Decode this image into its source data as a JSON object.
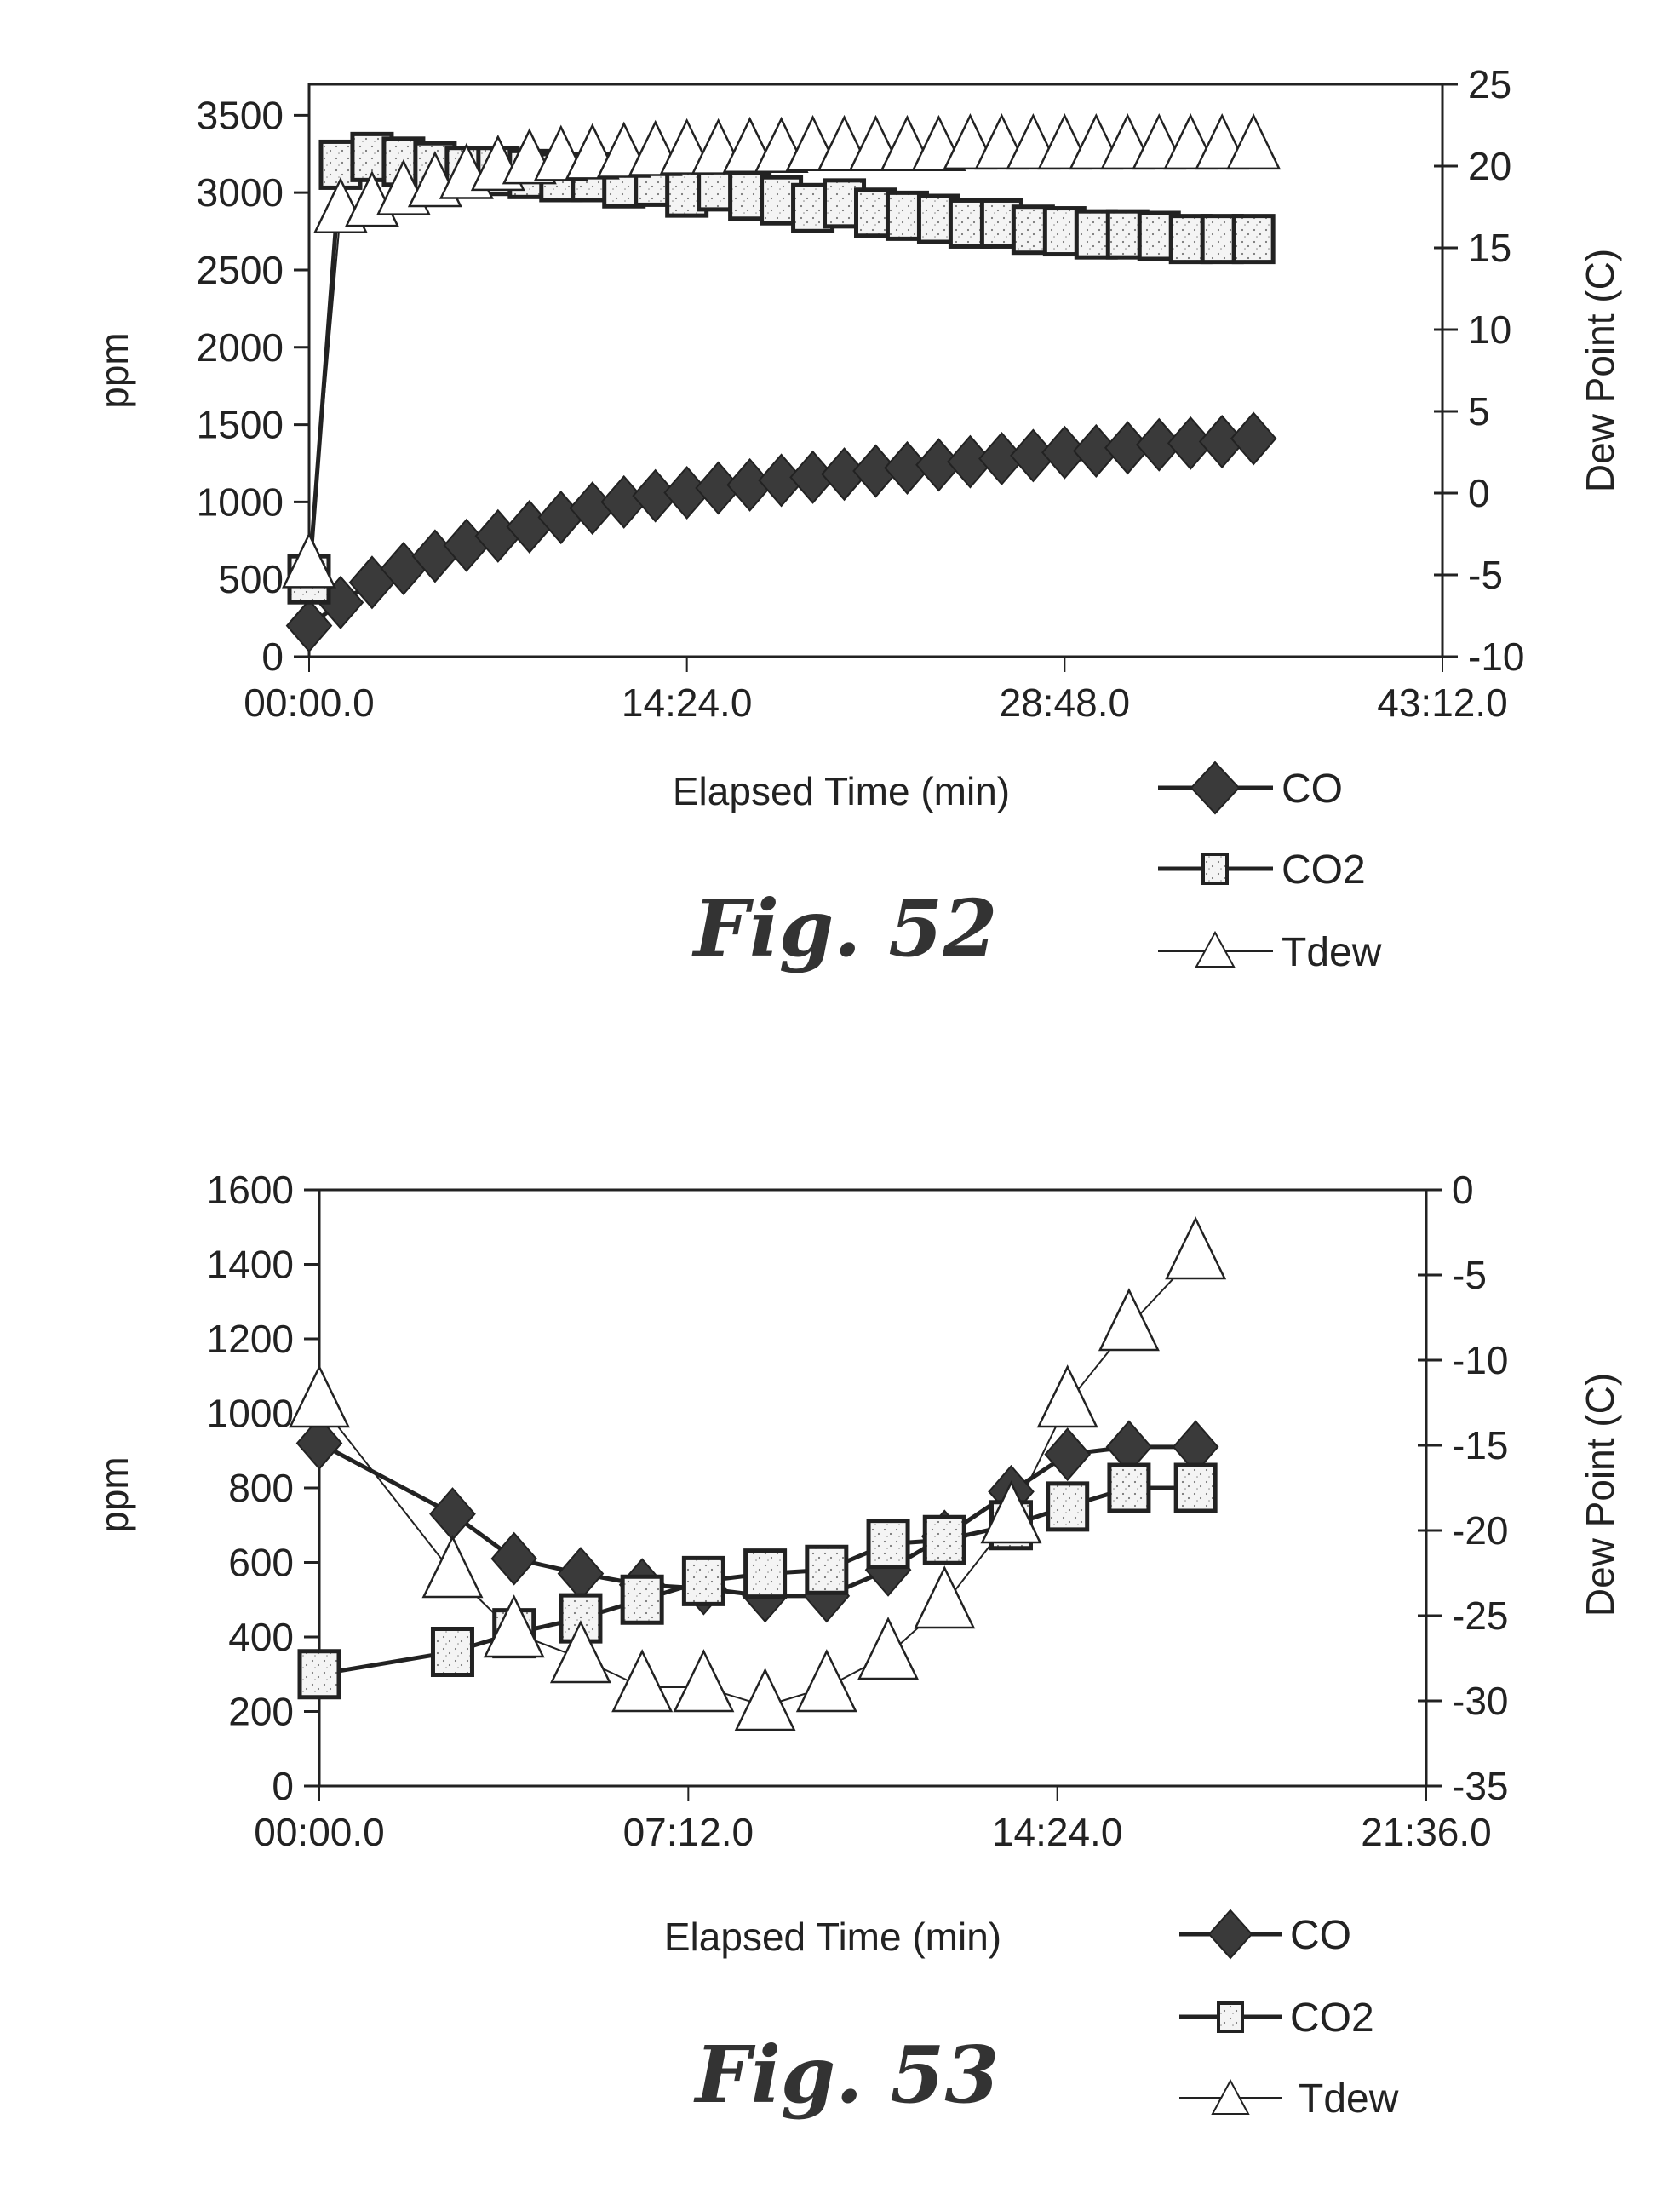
{
  "chart_data": [
    {
      "type": "line",
      "caption": "Fig. 52",
      "xlabel": "Elapsed Time (min)",
      "ylabel": "ppm",
      "y2label": "Dew Point (C)",
      "x_ticks": [
        "00:00.0",
        "14:24.0",
        "28:48.0",
        "43:12.0"
      ],
      "x_tick_values_min": [
        0,
        14.4,
        28.8,
        43.2
      ],
      "xlim_min": [
        0,
        43.2
      ],
      "y_ticks": [
        "0",
        "500",
        "1000",
        "1500",
        "2000",
        "2500",
        "3000",
        "3500"
      ],
      "y_tick_values": [
        0,
        500,
        1000,
        1500,
        2000,
        2500,
        3000,
        3500
      ],
      "ylim": [
        0,
        3700
      ],
      "y2_ticks": [
        "-10",
        "-5",
        "0",
        "5",
        "10",
        "15",
        "20",
        "25"
      ],
      "y2_tick_values": [
        -10,
        -5,
        0,
        5,
        10,
        15,
        20,
        25
      ],
      "y2lim": [
        -10,
        25
      ],
      "grid": false,
      "legend": [
        "CO",
        "CO2",
        "Tdew"
      ],
      "legend_position": "bottom-right",
      "x_min": [
        0,
        1.2,
        2.4,
        3.6,
        4.8,
        6.0,
        7.2,
        8.4,
        9.6,
        10.8,
        12.0,
        13.2,
        14.4,
        15.6,
        16.8,
        18.0,
        19.2,
        20.4,
        21.6,
        22.8,
        24.0,
        25.2,
        26.4,
        27.6,
        28.8,
        30.0,
        31.2,
        32.4,
        33.6,
        34.8,
        36.0
      ],
      "series": [
        {
          "name": "CO",
          "axis": "left",
          "marker": "diamond",
          "values": [
            200,
            350,
            480,
            570,
            650,
            720,
            780,
            840,
            900,
            960,
            1000,
            1040,
            1060,
            1090,
            1110,
            1140,
            1160,
            1180,
            1200,
            1220,
            1240,
            1260,
            1280,
            1300,
            1320,
            1330,
            1350,
            1370,
            1380,
            1390,
            1410
          ]
        },
        {
          "name": "CO2",
          "axis": "left",
          "marker": "square",
          "values": [
            500,
            3180,
            3230,
            3200,
            3170,
            3140,
            3140,
            3120,
            3100,
            3100,
            3060,
            3070,
            3000,
            3040,
            2980,
            2950,
            2900,
            2930,
            2870,
            2850,
            2830,
            2800,
            2800,
            2760,
            2750,
            2730,
            2730,
            2720,
            2700,
            2700,
            2700
          ]
        },
        {
          "name": "Tdew",
          "axis": "right",
          "marker": "triangle",
          "values": [
            -4.5,
            17.2,
            17.6,
            18.3,
            18.8,
            19.3,
            19.8,
            20.2,
            20.4,
            20.5,
            20.6,
            20.7,
            20.8,
            20.8,
            20.9,
            20.9,
            21.0,
            21.0,
            21.0,
            21.0,
            21.0,
            21.1,
            21.1,
            21.1,
            21.1,
            21.1,
            21.1,
            21.1,
            21.1,
            21.1,
            21.1
          ]
        }
      ]
    },
    {
      "type": "line",
      "caption": "Fig. 53",
      "xlabel": "Elapsed Time (min)",
      "ylabel": "ppm",
      "y2label": "Dew Point (C)",
      "x_ticks": [
        "00:00.0",
        "07:12.0",
        "14:24.0",
        "21:36.0"
      ],
      "x_tick_values_min": [
        0,
        7.2,
        14.4,
        21.6
      ],
      "xlim_min": [
        0,
        21.6
      ],
      "y_ticks": [
        "0",
        "200",
        "400",
        "600",
        "800",
        "1000",
        "1200",
        "1400",
        "1600"
      ],
      "y_tick_values": [
        0,
        200,
        400,
        600,
        800,
        1000,
        1200,
        1400,
        1600
      ],
      "ylim": [
        0,
        1600
      ],
      "y2_ticks": [
        "-35",
        "-30",
        "-25",
        "-20",
        "-15",
        "-10",
        "-5",
        "0"
      ],
      "y2_tick_values": [
        -35,
        -30,
        -25,
        -20,
        -15,
        -10,
        -5,
        0
      ],
      "y2lim": [
        -35,
        0
      ],
      "grid": false,
      "legend": [
        "CO",
        "CO2",
        "Tdew"
      ],
      "legend_position": "bottom-right",
      "x_min": [
        0,
        1.4,
        2.6,
        3.8,
        5.1,
        6.3,
        7.5,
        8.7,
        9.9,
        11.1,
        12.2,
        13.5,
        14.6,
        15.8,
        17.1
      ],
      "series": [
        {
          "name": "CO",
          "axis": "left",
          "marker": "diamond",
          "values": [
            920,
            null,
            730,
            610,
            570,
            540,
            530,
            510,
            510,
            580,
            670,
            790,
            890,
            910,
            910
          ]
        },
        {
          "name": "CO2",
          "axis": "left",
          "marker": "square",
          "values": [
            300,
            null,
            360,
            410,
            450,
            500,
            550,
            570,
            580,
            650,
            660,
            700,
            750,
            800,
            800
          ]
        },
        {
          "name": "Tdew",
          "axis": "right",
          "marker": "triangle",
          "values": [
            -12.5,
            null,
            -22.5,
            -26.0,
            -27.5,
            -29.2,
            -29.2,
            -30.3,
            -29.2,
            -27.3,
            -24.3,
            -19.3,
            -12.5,
            -8.0,
            -3.8
          ]
        }
      ]
    }
  ],
  "colors": {
    "ink": "#222222",
    "diamond_fill": "#3a3a3a",
    "square_fill": "#f2f2f2",
    "triangle_fill": "#ffffff"
  }
}
